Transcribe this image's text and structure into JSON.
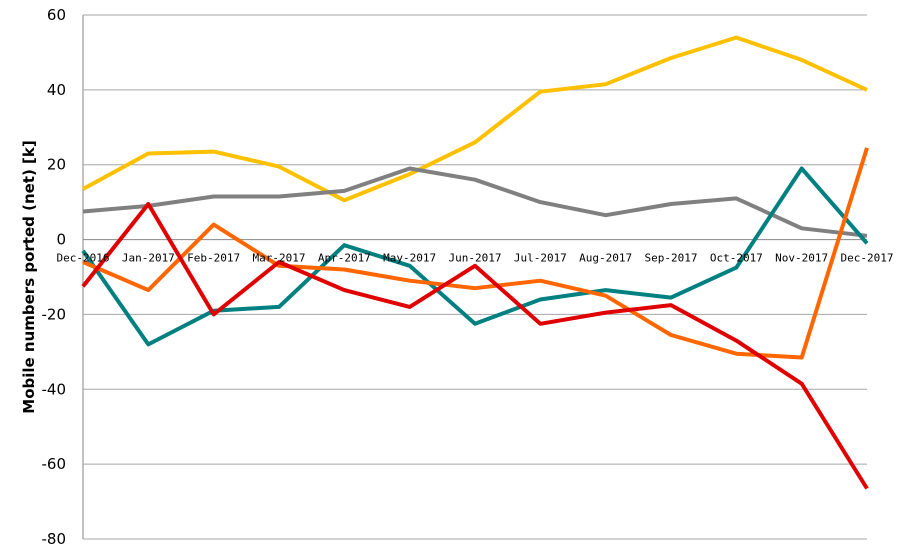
{
  "chart_data": {
    "type": "line",
    "ylabel": "Mobile numbers ported (net) [k]",
    "ylim": [
      -80,
      60
    ],
    "yticks": [
      "60",
      "40",
      "20",
      "0",
      "-20",
      "-40",
      "-60",
      "-80"
    ],
    "ytick_values": [
      60,
      40,
      20,
      0,
      -20,
      -40,
      -60,
      -80
    ],
    "categories": [
      "Dec-2016",
      "Jan-2017",
      "Feb-2017",
      "Mar-2017",
      "Apr-2017",
      "May-2017",
      "Jun-2017",
      "Jul-2017",
      "Aug-2017",
      "Sep-2017",
      "Oct-2017",
      "Nov-2017",
      "Dec-2017"
    ],
    "grid": true,
    "legend": "none",
    "series": [
      {
        "color": "#FFC000",
        "values": [
          13.5,
          23,
          23.5,
          19.5,
          10.5,
          17.5,
          26,
          39.5,
          41.5,
          48.5,
          54,
          48,
          40
        ]
      },
      {
        "color": "#808080",
        "values": [
          7.5,
          9,
          11.5,
          11.5,
          13,
          19,
          16,
          10,
          6.5,
          9.5,
          11,
          3,
          1
        ]
      },
      {
        "color": "#008080",
        "values": [
          -3,
          -28,
          -19,
          -18,
          -1.5,
          -7,
          -22.5,
          -16,
          -13.5,
          -15.5,
          -7.5,
          19,
          -1
        ]
      },
      {
        "color": "#FF6600",
        "values": [
          -6,
          -13.5,
          4,
          -7,
          -8,
          -11,
          -13,
          -11,
          -15,
          -25.5,
          -30.5,
          -31.5,
          24.5
        ]
      },
      {
        "color": "#E00000",
        "values": [
          -12.5,
          9.5,
          -20,
          -6,
          -13.5,
          -18,
          -7,
          -22.5,
          -19.5,
          -17.5,
          -27,
          -38.5,
          -66.5
        ]
      }
    ]
  }
}
